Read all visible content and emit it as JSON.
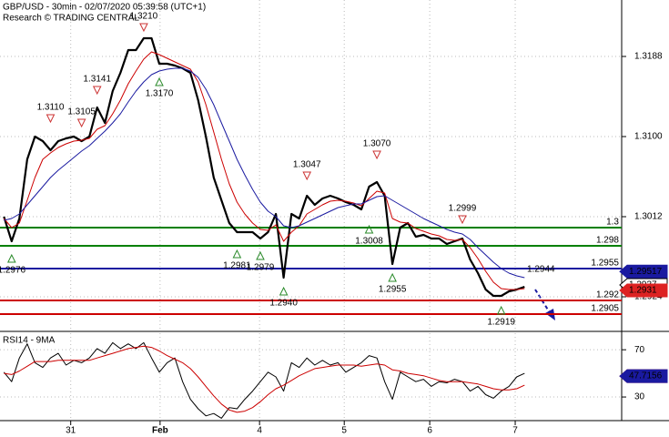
{
  "chart_data": [
    {
      "type": "line",
      "title": "GBP/USD - 30min - 02/07/2020 05:39:58 (UTC+1)",
      "subtitle": "Research © TRADING CENTRAL",
      "ylim": [
        1.2888,
        1.325
      ],
      "yticks": [
        1.3188,
        {
          "value": 1.31,
          "label": "1.3100"
        },
        1.3012,
        1.2924
      ],
      "xlim": [
        -0.5,
        79.5
      ],
      "xticks": [
        {
          "value": 8.6,
          "label": "31"
        },
        {
          "value": 20.1,
          "label": "Feb"
        },
        {
          "value": 32.9,
          "label": "4"
        },
        {
          "value": 43.8,
          "label": "5"
        },
        {
          "value": 54.8,
          "label": "6"
        },
        {
          "value": 65.8,
          "label": "7"
        }
      ],
      "grid": true,
      "series": [
        {
          "color": "#000000",
          "values": [
            1.3012,
            1.2985,
            1.301,
            1.3075,
            1.31,
            1.3095,
            1.3085,
            1.3095,
            1.3098,
            1.31,
            1.3095,
            1.31,
            1.3132,
            1.3115,
            1.315,
            1.317,
            1.3195,
            1.3195,
            1.3208,
            1.3208,
            1.318,
            1.318,
            1.3178,
            1.3175,
            1.317,
            1.314,
            1.31,
            1.3055,
            1.303,
            1.3005,
            1.2995,
            1.2995,
            1.2995,
            1.2988,
            1.2995,
            1.3015,
            1.2945,
            1.3015,
            1.301,
            1.3035,
            1.3025,
            1.3032,
            1.3035,
            1.3032,
            1.3028,
            1.3025,
            1.302,
            1.3045,
            1.305,
            1.3035,
            1.296,
            1.3,
            1.3005,
            1.299,
            1.2992,
            1.2988,
            1.2988,
            1.2982,
            1.2985,
            1.2988,
            1.2965,
            1.295,
            1.2932,
            1.2925,
            1.2925,
            1.293,
            1.2932,
            1.2935
          ]
        },
        {
          "color": "#cc0000",
          "values": [
            1.301,
            1.3,
            1.3005,
            1.303,
            1.3055,
            1.3075,
            1.3082,
            1.3088,
            1.3092,
            1.3095,
            1.3096,
            1.3098,
            1.3108,
            1.3112,
            1.3125,
            1.314,
            1.3158,
            1.3172,
            1.3185,
            1.3193,
            1.319,
            1.3186,
            1.3182,
            1.3178,
            1.3174,
            1.316,
            1.3135,
            1.3105,
            1.3075,
            1.3048,
            1.3028,
            1.3015,
            1.3005,
            1.2998,
            1.2997,
            1.3003,
            1.2985,
            1.2995,
            1.3002,
            1.3015,
            1.302,
            1.3025,
            1.3029,
            1.303,
            1.3029,
            1.3027,
            1.3024,
            1.3032,
            1.304,
            1.3038,
            1.301,
            1.3006,
            1.3005,
            1.2999,
            1.2996,
            1.2993,
            1.2991,
            1.2987,
            1.2986,
            1.2987,
            1.2978,
            1.2966,
            1.2952,
            1.294,
            1.2933,
            1.2932,
            1.2932,
            1.2933
          ]
        },
        {
          "color": "#1a1aa0",
          "values": [
            1.3008,
            1.301,
            1.3015,
            1.3025,
            1.3035,
            1.3045,
            1.3055,
            1.3063,
            1.307,
            1.3077,
            1.3084,
            1.309,
            1.3098,
            1.3106,
            1.3115,
            1.3125,
            1.3138,
            1.315,
            1.316,
            1.3168,
            1.3172,
            1.3174,
            1.3175,
            1.3175,
            1.3172,
            1.3165,
            1.3152,
            1.3135,
            1.3115,
            1.3095,
            1.3075,
            1.3058,
            1.3042,
            1.3028,
            1.3018,
            1.3012,
            1.3002,
            1.3,
            1.3002,
            1.3006,
            1.301,
            1.3014,
            1.3018,
            1.3022,
            1.3024,
            1.3026,
            1.3026,
            1.303,
            1.3034,
            1.3035,
            1.303,
            1.3025,
            1.302,
            1.3015,
            1.301,
            1.3006,
            1.3002,
            1.2998,
            1.2995,
            1.2993,
            1.2987,
            1.2978,
            1.297,
            1.2962,
            1.2955,
            1.295,
            1.2947,
            1.2945
          ]
        }
      ],
      "levels": [
        {
          "value": 1.3,
          "color": "#008000"
        },
        {
          "value": 1.298,
          "color": "#008000"
        },
        {
          "value": 1.2955,
          "color": "#1a1aa0"
        },
        {
          "value": 1.292,
          "color": "#cc0000"
        },
        {
          "value": 1.2905,
          "color": "#cc0000"
        }
      ],
      "markers": [
        {
          "x": 1,
          "value": 1.2976,
          "label": "1.2976",
          "kind": "low"
        },
        {
          "x": 6,
          "value": 1.311,
          "label": "1.3110",
          "kind": "high"
        },
        {
          "x": 10,
          "value": 1.3105,
          "label": "1.3105",
          "kind": "high"
        },
        {
          "x": 12,
          "value": 1.3141,
          "label": "1.3141",
          "kind": "high"
        },
        {
          "x": 18,
          "value": 1.321,
          "label": "1.3210",
          "kind": "high"
        },
        {
          "x": 20,
          "value": 1.317,
          "label": "1.3170",
          "kind": "low"
        },
        {
          "x": 30,
          "value": 1.2981,
          "label": "1.2981",
          "kind": "low"
        },
        {
          "x": 33,
          "value": 1.2979,
          "label": "1.2979",
          "kind": "low"
        },
        {
          "x": 36,
          "value": 1.294,
          "label": "1.2940",
          "kind": "low"
        },
        {
          "x": 39,
          "value": 1.3047,
          "label": "1.3047",
          "kind": "high"
        },
        {
          "x": 47,
          "value": 1.3008,
          "label": "1.3008",
          "kind": "low"
        },
        {
          "x": 48,
          "value": 1.307,
          "label": "1.3070",
          "kind": "high"
        },
        {
          "x": 50,
          "value": 1.2955,
          "label": "1.2955",
          "kind": "low"
        },
        {
          "x": 59,
          "value": 1.2999,
          "label": "1.2999",
          "kind": "high"
        },
        {
          "x": 64,
          "value": 1.2919,
          "label": "1.2919",
          "kind": "low"
        },
        {
          "x": 67,
          "value": 1.2944,
          "label": "1.2944",
          "kind": "note"
        }
      ],
      "tags": [
        {
          "value": 1.29517,
          "color": "#1a1aa0"
        },
        {
          "value": 1.2937,
          "color": "#ffffff"
        },
        {
          "value": 1.2931,
          "color": "#dd2222"
        }
      ]
    },
    {
      "type": "line",
      "title": "RSI14 - 9MA",
      "ylim": [
        10,
        84
      ],
      "yticks": [
        30,
        70
      ],
      "series": [
        {
          "color": "#000000",
          "values": [
            51,
            43,
            63,
            75,
            59,
            55,
            63,
            67,
            57,
            61,
            59,
            63,
            71,
            67,
            76,
            71,
            75,
            71,
            76,
            63,
            51,
            59,
            63,
            43,
            28,
            20,
            14,
            16,
            12,
            21,
            20,
            28,
            35,
            43,
            51,
            47,
            35,
            59,
            55,
            63,
            57,
            61,
            57,
            59,
            51,
            55,
            59,
            65,
            63,
            43,
            28,
            51,
            47,
            43,
            45,
            39,
            43,
            42,
            45,
            43,
            35,
            39,
            32,
            29,
            35,
            39,
            47,
            50
          ]
        },
        {
          "color": "#cc0000",
          "values": [
            50,
            49,
            52,
            56,
            60,
            60,
            60,
            61,
            61,
            61,
            61,
            61,
            63,
            65,
            67,
            69,
            71,
            72,
            73,
            72,
            69,
            65,
            62,
            59,
            54,
            47,
            39,
            31,
            24,
            19,
            17,
            18,
            21,
            26,
            32,
            37,
            40,
            44,
            48,
            51,
            54,
            55,
            56,
            57,
            57,
            57,
            56,
            57,
            58,
            57,
            53,
            52,
            50,
            49,
            48,
            46,
            44,
            43,
            43,
            43,
            42,
            41,
            39,
            37,
            36,
            36,
            37,
            40
          ]
        }
      ],
      "tags": [
        {
          "value": 47.649,
          "color": "#dd2222"
        },
        {
          "value": 47.7156,
          "color": "#1a1aa0"
        }
      ]
    }
  ]
}
